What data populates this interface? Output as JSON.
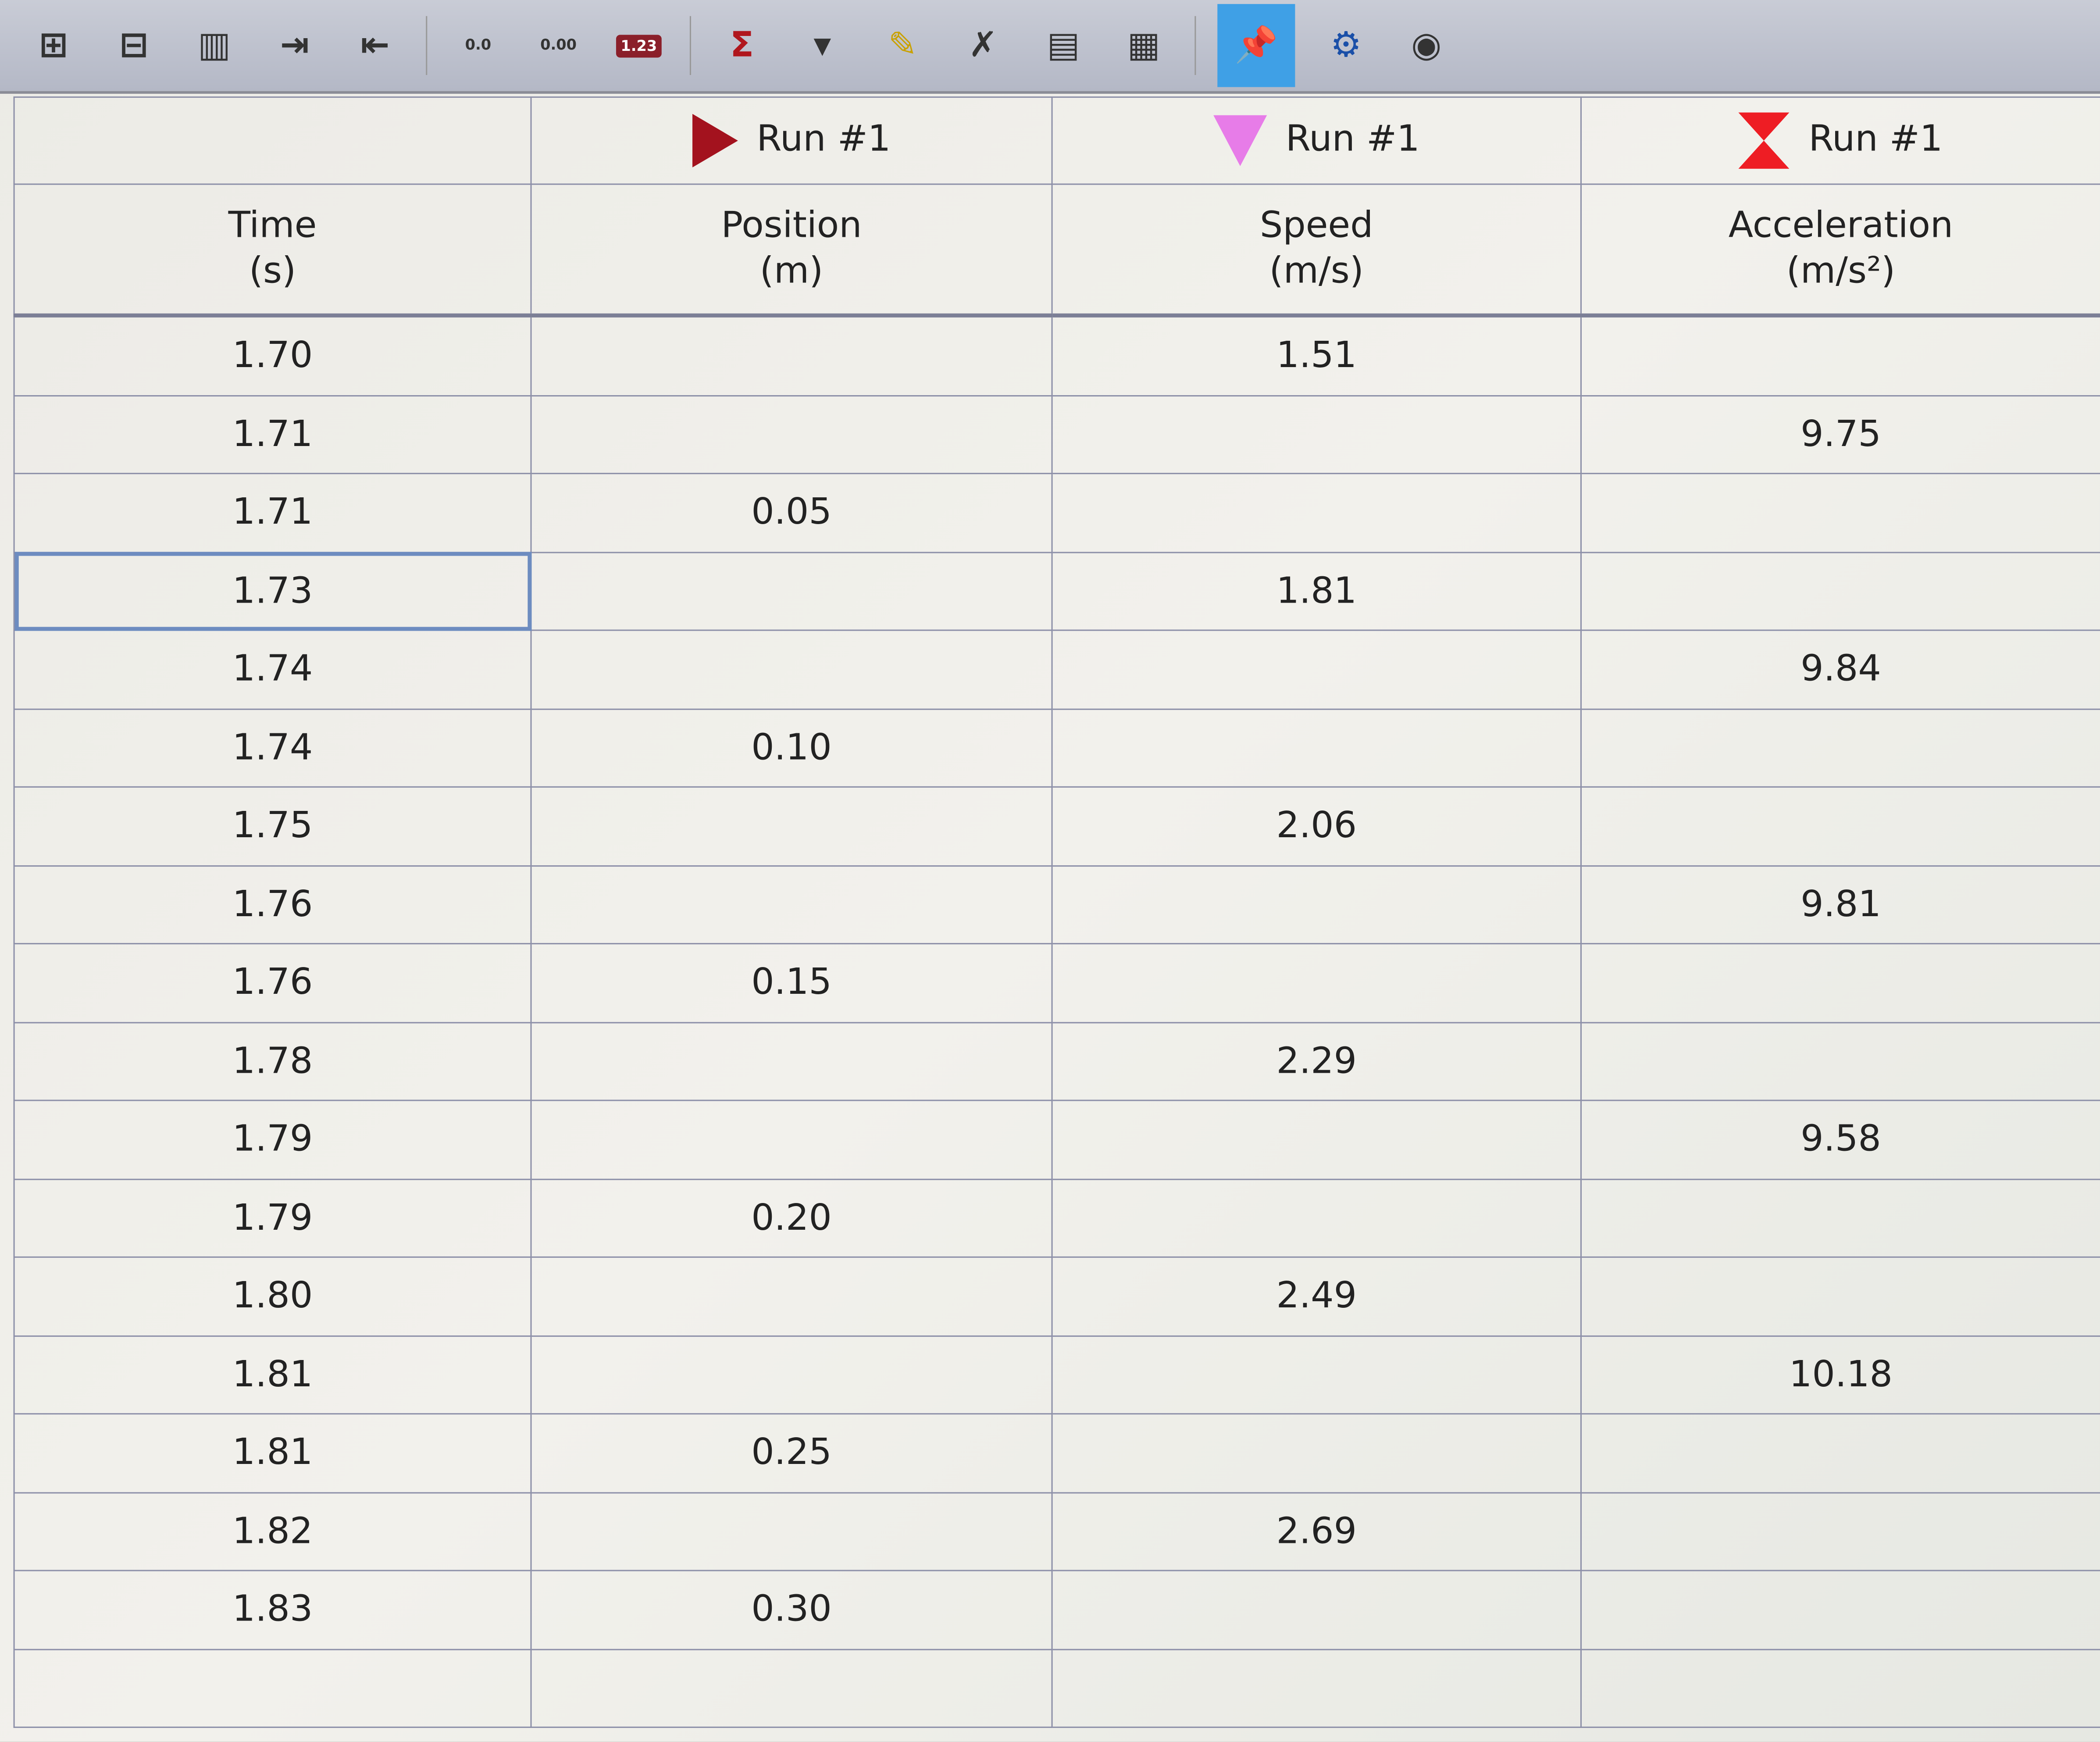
{
  "toolbar": {
    "buttons": [
      {
        "icon": "add-row-icon"
      },
      {
        "icon": "insert-row-icon"
      },
      {
        "icon": "add-column-icon"
      },
      {
        "icon": "insert-column-right-icon"
      },
      {
        "icon": "insert-column-left-icon"
      },
      {
        "icon": "increase-precision-icon"
      },
      {
        "icon": "decrease-precision-icon"
      },
      {
        "icon": "number-format-icon",
        "label": "1.23"
      },
      {
        "icon": "sigma-statistics-icon"
      },
      {
        "icon": "dropdown-arrow-icon"
      },
      {
        "icon": "edit-data-icon"
      },
      {
        "icon": "clear-data-icon"
      },
      {
        "icon": "column-properties-icon"
      },
      {
        "icon": "delete-column-icon"
      },
      {
        "icon": "pin-icon",
        "active": true
      },
      {
        "icon": "gear-icon"
      },
      {
        "icon": "eye-icon"
      }
    ],
    "accent_color": "#3fa0e6"
  },
  "table": {
    "columns": [
      {
        "run": "",
        "name": "Time",
        "unit": "(s)"
      },
      {
        "run": "Run #1",
        "name": "Position",
        "unit": "(m)",
        "marker": "right-triangle",
        "marker_color": "#a3121e"
      },
      {
        "run": "Run #1",
        "name": "Speed",
        "unit": "(m/s)",
        "marker": "down-triangle",
        "marker_color": "#e77ce8"
      },
      {
        "run": "Run #1",
        "name": "Acceleration",
        "unit": "(m/s²)",
        "marker": "hourglass",
        "marker_color": "#ee1d24"
      }
    ],
    "rows": [
      [
        "1.70",
        "",
        "1.51",
        ""
      ],
      [
        "1.71",
        "",
        "",
        "9.75"
      ],
      [
        "1.71",
        "0.05",
        "",
        ""
      ],
      [
        "1.73",
        "",
        "1.81",
        ""
      ],
      [
        "1.74",
        "",
        "",
        "9.84"
      ],
      [
        "1.74",
        "0.10",
        "",
        ""
      ],
      [
        "1.75",
        "",
        "2.06",
        ""
      ],
      [
        "1.76",
        "",
        "",
        "9.81"
      ],
      [
        "1.76",
        "0.15",
        "",
        ""
      ],
      [
        "1.78",
        "",
        "2.29",
        ""
      ],
      [
        "1.79",
        "",
        "",
        "9.58"
      ],
      [
        "1.79",
        "0.20",
        "",
        ""
      ],
      [
        "1.80",
        "",
        "2.49",
        ""
      ],
      [
        "1.81",
        "",
        "",
        "10.18"
      ],
      [
        "1.81",
        "0.25",
        "",
        ""
      ],
      [
        "1.82",
        "",
        "2.69",
        ""
      ],
      [
        "1.83",
        "0.30",
        "",
        ""
      ],
      [
        "",
        "",
        "",
        ""
      ]
    ],
    "selected_row": 3
  }
}
